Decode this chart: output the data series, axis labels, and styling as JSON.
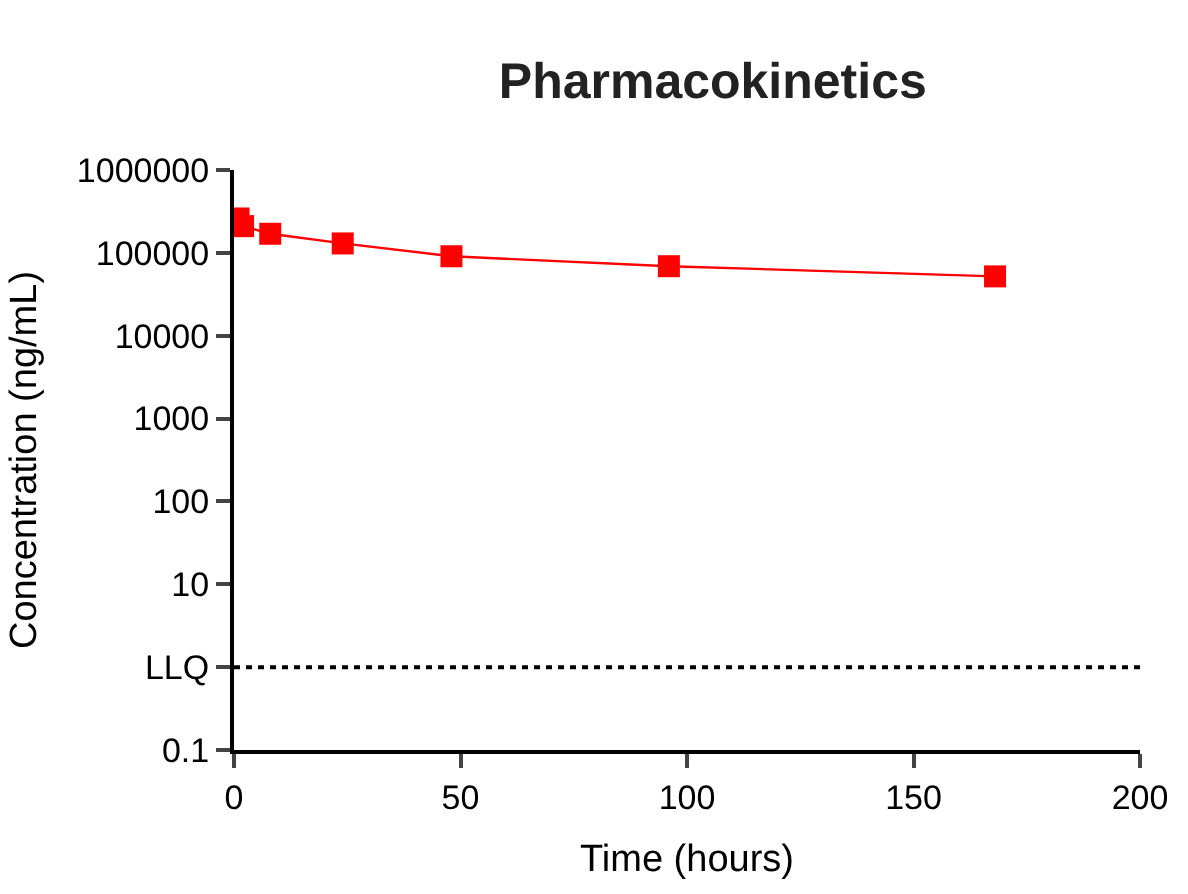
{
  "chart_data": {
    "type": "line",
    "title": "Pharmacokinetics",
    "xlabel": "Time (hours)",
    "ylabel": "Concentration (ng/mL)",
    "x": [
      1,
      2,
      8,
      24,
      48,
      96,
      168
    ],
    "series": [
      {
        "color": "#ff0000",
        "values": [
          260000,
          210000,
          170000,
          130000,
          91000,
          69000,
          52000
        ]
      }
    ],
    "marker": "square",
    "log": "y",
    "xlim": [
      0,
      200
    ],
    "xticks": [
      0,
      50,
      100,
      150,
      200
    ],
    "ylim": [
      0.1,
      1000000
    ],
    "yticks": [
      0.1,
      {
        "value": 1,
        "label": "LLQ"
      },
      10,
      100,
      1000,
      10000,
      100000,
      1000000
    ],
    "ref_lines": [
      {
        "axis": "y",
        "value": 1,
        "color": "#000000",
        "line_style": "dotted"
      }
    ]
  }
}
